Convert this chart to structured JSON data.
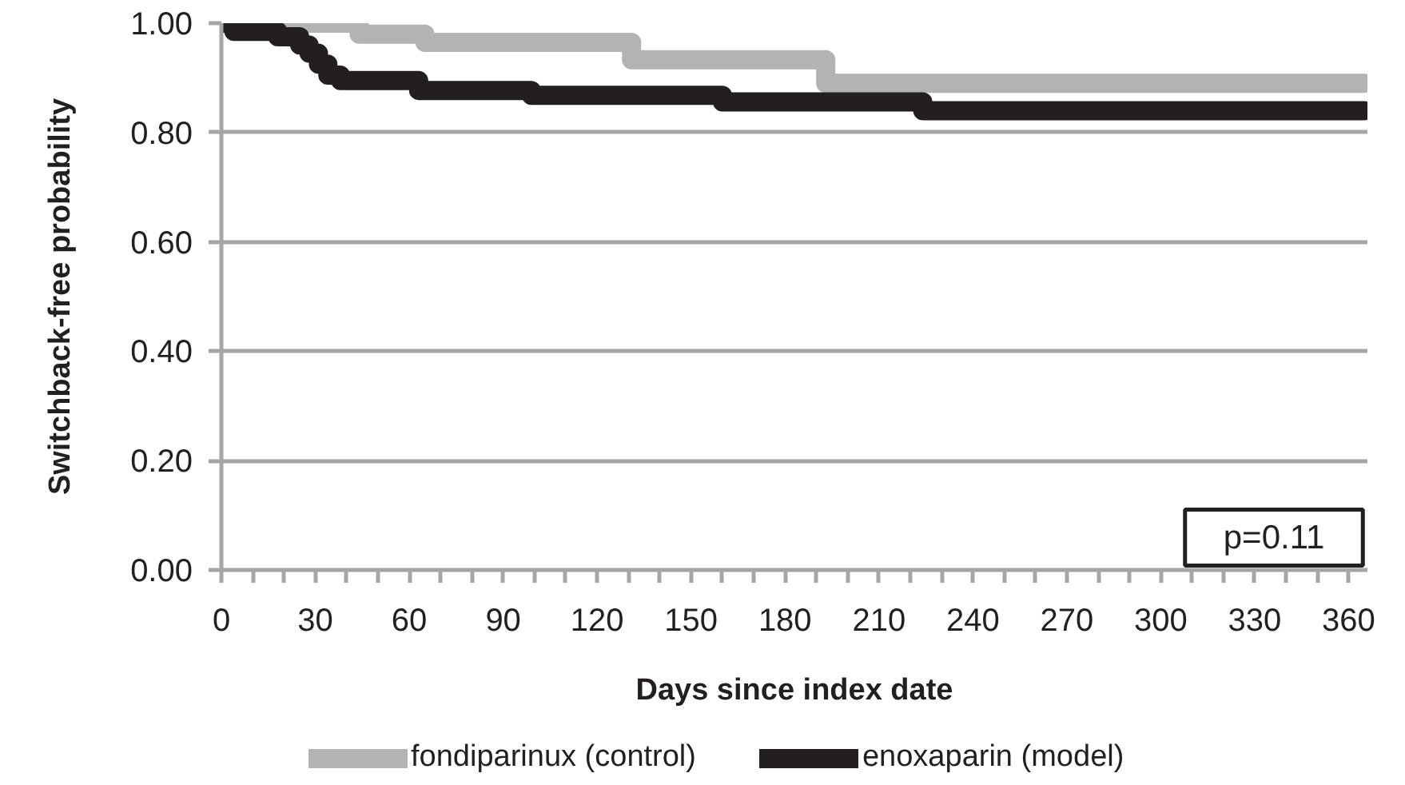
{
  "chart_data": {
    "type": "step",
    "xlabel": "Days since index date",
    "ylabel": "Switchback-free probability",
    "xlim": [
      0,
      366
    ],
    "ylim": [
      0,
      1
    ],
    "xticks": [
      0,
      {
        "value": 10,
        "label": null
      },
      {
        "value": 20,
        "label": null
      },
      30,
      {
        "value": 40,
        "label": null
      },
      {
        "value": 50,
        "label": null
      },
      60,
      {
        "value": 70,
        "label": null
      },
      {
        "value": 80,
        "label": null
      },
      90,
      {
        "value": 100,
        "label": null
      },
      {
        "value": 110,
        "label": null
      },
      120,
      {
        "value": 130,
        "label": null
      },
      {
        "value": 140,
        "label": null
      },
      150,
      {
        "value": 160,
        "label": null
      },
      {
        "value": 170,
        "label": null
      },
      180,
      {
        "value": 190,
        "label": null
      },
      {
        "value": 200,
        "label": null
      },
      210,
      {
        "value": 220,
        "label": null
      },
      {
        "value": 230,
        "label": null
      },
      240,
      {
        "value": 250,
        "label": null
      },
      {
        "value": 260,
        "label": null
      },
      270,
      {
        "value": 280,
        "label": null
      },
      {
        "value": 290,
        "label": null
      },
      300,
      {
        "value": 310,
        "label": null
      },
      {
        "value": 320,
        "label": null
      },
      330,
      {
        "value": 340,
        "label": null
      },
      {
        "value": 350,
        "label": null
      },
      360
    ],
    "yticks": [
      {
        "value": 0,
        "label": "0.00"
      },
      {
        "value": 0.2,
        "label": "0.20"
      },
      {
        "value": 0.4,
        "label": "0.40"
      },
      {
        "value": 0.6,
        "label": "0.60"
      },
      {
        "value": 0.8,
        "label": "0.80"
      },
      {
        "value": 1,
        "label": "1.00"
      }
    ],
    "grid": "y",
    "legend": "bottom",
    "annotations": [
      "p=0.11"
    ],
    "series": [
      {
        "name": "fondiparinux (control)",
        "color": "#b2b3b5",
        "x": [
          0,
          44,
          65,
          131,
          193,
          365
        ],
        "values": [
          1.0,
          0.98,
          0.965,
          0.933,
          0.89,
          0.89
        ]
      },
      {
        "name": "enoxaparin (model)",
        "color": "#231f20",
        "x": [
          0,
          4,
          18,
          25,
          28,
          31,
          34,
          38,
          63,
          99,
          160,
          224,
          365
        ],
        "values": [
          1.0,
          0.985,
          0.975,
          0.96,
          0.945,
          0.925,
          0.905,
          0.895,
          0.877,
          0.868,
          0.856,
          0.84,
          0.84
        ]
      }
    ]
  }
}
